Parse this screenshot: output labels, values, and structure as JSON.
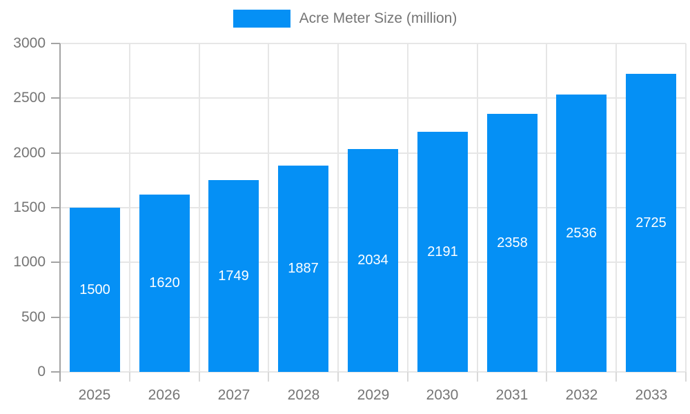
{
  "chart_data": {
    "type": "bar",
    "title": "Acre Meter Size (million)",
    "legend": {
      "label": "Acre Meter Size (million)",
      "position": "top"
    },
    "categories": [
      "2025",
      "2026",
      "2027",
      "2028",
      "2029",
      "2030",
      "2031",
      "2032",
      "2033"
    ],
    "series": [
      {
        "name": "Acre Meter Size (million)",
        "values": [
          1500,
          1620,
          1749,
          1887,
          2034,
          2191,
          2358,
          2536,
          2725
        ]
      }
    ],
    "value_labels": [
      "1500",
      "1620",
      "1749",
      "1887",
      "2034",
      "2191",
      "2358",
      "2536",
      "2725"
    ],
    "xlabel": "",
    "ylabel": "",
    "ylim": [
      0,
      3000
    ],
    "yticks": [
      0,
      500,
      1000,
      1500,
      2000,
      2500,
      3000
    ],
    "grid": true,
    "colors": {
      "bar": "#0590F5",
      "value_label": "#ffffff",
      "axis_text": "#757575",
      "gridline": "#e6e6e6",
      "axis_line": "#a3a3a3",
      "background": "#ffffff"
    }
  }
}
